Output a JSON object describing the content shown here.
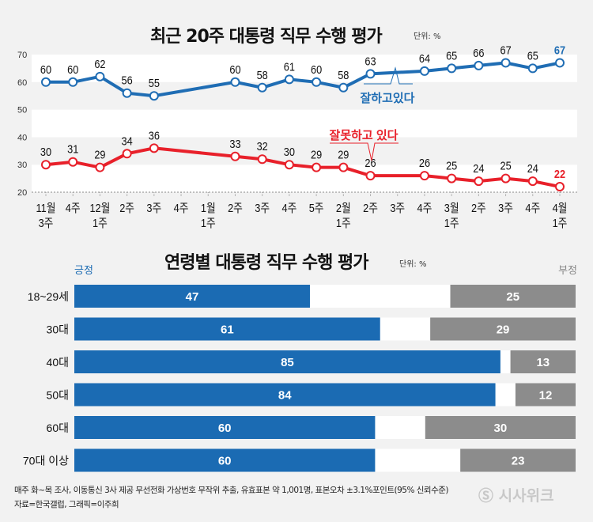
{
  "chart_data": [
    {
      "type": "line",
      "title": "최근 20주 대통령 직무 수행 평가",
      "unit_label": "단위: %",
      "x_labels": [
        [
          "11월",
          "3주"
        ],
        [
          "4주"
        ],
        [
          "12월",
          "1주"
        ],
        [
          "2주"
        ],
        [
          "3주"
        ],
        [
          "4주"
        ],
        [
          "1월",
          "1주"
        ],
        [
          "2주"
        ],
        [
          "3주"
        ],
        [
          "4주"
        ],
        [
          "5주"
        ],
        [
          "2월",
          "1주"
        ],
        [
          "2주"
        ],
        [
          "3주"
        ],
        [
          "4주"
        ],
        [
          "3월",
          "1주"
        ],
        [
          "2주"
        ],
        [
          "3주"
        ],
        [
          "4주"
        ],
        [
          "4월",
          "1주"
        ]
      ],
      "ylim": [
        20,
        70
      ],
      "y_ticks": [
        20,
        30,
        40,
        50,
        60,
        70
      ],
      "series": [
        {
          "name": "잘하고있다",
          "color": "#1f6db4",
          "values": [
            60,
            60,
            62,
            56,
            55,
            null,
            null,
            60,
            58,
            61,
            60,
            58,
            63,
            null,
            64,
            65,
            66,
            67,
            65,
            67
          ]
        },
        {
          "name": "잘못하고 있다",
          "color": "#e8202a",
          "values": [
            30,
            31,
            29,
            34,
            36,
            null,
            null,
            33,
            32,
            30,
            29,
            29,
            26,
            null,
            26,
            25,
            24,
            25,
            24,
            22
          ]
        }
      ]
    },
    {
      "type": "bar",
      "stacked": "horizontal",
      "title": "연령별 대통령 직무 수행 평가",
      "unit_label": "단위: %",
      "positive_label": "긍정",
      "negative_label": "부정",
      "positive_color": "#1b6bb3",
      "negative_color": "#8c8c8c",
      "categories": [
        "18~29세",
        "30대",
        "40대",
        "50대",
        "60대",
        "70대 이상"
      ],
      "positive": [
        47,
        61,
        85,
        84,
        60,
        60
      ],
      "negative": [
        25,
        29,
        13,
        12,
        30,
        23
      ]
    }
  ],
  "footer": {
    "line1": "매주 화~목 조사, 이동통신 3사 제공 무선전화 가상번호 무작위 추출, 유효표본 약 1,001명, 표본오차 ±3.1%포인트(95% 신뢰수준)",
    "line2": "자료=한국갤럽, 그래픽=이주희",
    "logo": "시사위크"
  }
}
